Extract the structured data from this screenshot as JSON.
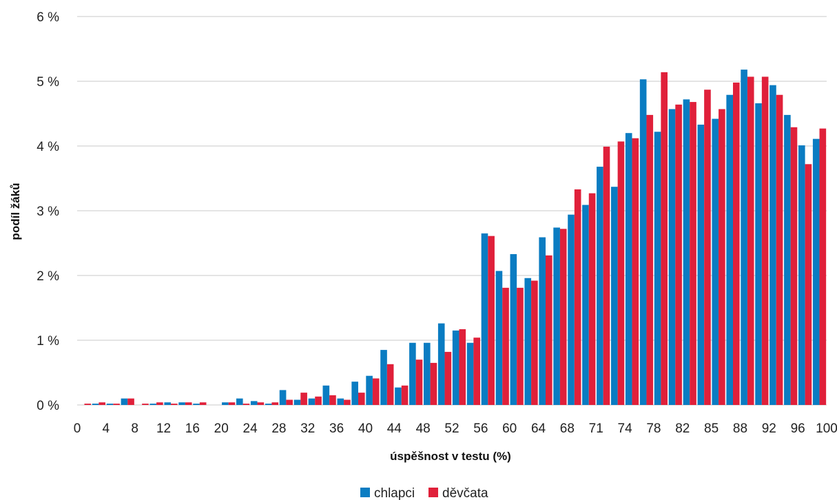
{
  "chart_data": {
    "type": "bar",
    "xlabel": "úspěšnost v testu (%)",
    "ylabel": "podíl žáků",
    "ylim": [
      0,
      6
    ],
    "yticks": [
      0,
      1,
      2,
      3,
      4,
      5,
      6
    ],
    "ytick_labels": [
      "0 %",
      "1 %",
      "2 %",
      "3 %",
      "4 %",
      "5 %",
      "6 %"
    ],
    "xtick_labels": [
      "0",
      "4",
      "8",
      "12",
      "16",
      "20",
      "24",
      "28",
      "32",
      "36",
      "40",
      "44",
      "48",
      "52",
      "56",
      "60",
      "64",
      "68",
      "71",
      "74",
      "78",
      "82",
      "85",
      "88",
      "92",
      "96",
      "100"
    ],
    "grid": true,
    "legend_position": "bottom",
    "series": [
      {
        "name": "chlapci",
        "color": "#0a7cc2",
        "values": [
          0,
          0.02,
          0.02,
          0.1,
          0,
          0.02,
          0.04,
          0.04,
          0.02,
          0,
          0.04,
          0.1,
          0.06,
          0.02,
          0.23,
          0.08,
          0.1,
          0.3,
          0.1,
          0.36,
          0.45,
          0.85,
          0.27,
          0.96,
          0.96,
          1.26,
          1.15,
          0.96,
          2.65,
          2.07,
          2.33,
          1.96,
          2.59,
          2.74,
          2.94,
          3.09,
          3.68,
          3.37,
          4.2,
          5.03,
          4.22,
          4.57,
          4.72,
          4.33,
          4.42,
          4.79,
          5.18,
          4.66,
          4.94,
          4.48,
          4.01,
          4.11
        ]
      },
      {
        "name": "děvčata",
        "color": "#e0203a",
        "values": [
          0.02,
          0.04,
          0.02,
          0.1,
          0.02,
          0.04,
          0.02,
          0.04,
          0.04,
          0,
          0.04,
          0.02,
          0.04,
          0.04,
          0.08,
          0.19,
          0.13,
          0.15,
          0.08,
          0.19,
          0.41,
          0.63,
          0.3,
          0.7,
          0.65,
          0.82,
          1.17,
          1.04,
          2.61,
          1.81,
          1.81,
          1.92,
          2.31,
          2.72,
          3.33,
          3.27,
          3.99,
          4.07,
          4.12,
          4.48,
          5.14,
          4.64,
          4.68,
          4.87,
          4.57,
          4.98,
          5.07,
          5.07,
          4.79,
          4.29,
          3.72,
          4.27
        ]
      }
    ]
  }
}
